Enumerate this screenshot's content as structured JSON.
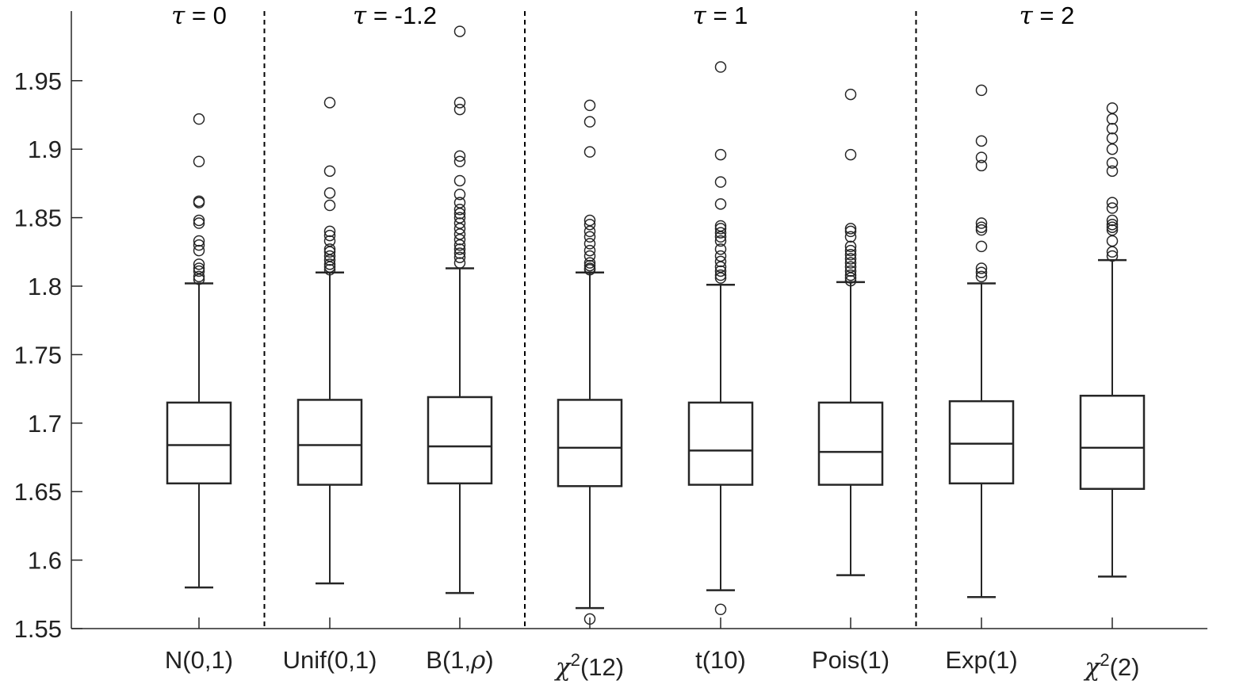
{
  "chart_data": {
    "type": "box",
    "ylim": [
      1.55,
      2.0
    ],
    "yticks": [
      "1.55",
      "1.6",
      "1.65",
      "1.7",
      "1.75",
      "1.8",
      "1.85",
      "1.9",
      "1.95"
    ],
    "grid": false,
    "groups": [
      {
        "tau_symbol": "τ",
        "rest": " = 0",
        "span": [
          0,
          0
        ]
      },
      {
        "tau_symbol": "τ",
        "rest": " = -1.2",
        "span": [
          1,
          2
        ]
      },
      {
        "tau_symbol": "τ",
        "rest": " = 1",
        "span": [
          3,
          5
        ]
      },
      {
        "tau_symbol": "τ",
        "rest": " = 2",
        "span": [
          6,
          7
        ]
      }
    ],
    "categories": [
      {
        "label": "N(0,1)",
        "parts": [
          {
            "t": "N(0,1)"
          }
        ]
      },
      {
        "label": "Unif(0,1)",
        "parts": [
          {
            "t": "Unif(0,1)"
          }
        ]
      },
      {
        "label": "B(1,ρ)",
        "parts": [
          {
            "t": "B(1,"
          },
          {
            "t": "ρ",
            "greek": true
          },
          {
            "t": ")"
          }
        ]
      },
      {
        "label": "χ2(12)",
        "parts": [
          {
            "t": "χ",
            "greek": true
          },
          {
            "t": "2",
            "sup": true
          },
          {
            "t": "(12)"
          }
        ]
      },
      {
        "label": "t(10)",
        "parts": [
          {
            "t": "t(10)"
          }
        ]
      },
      {
        "label": "Pois(1)",
        "parts": [
          {
            "t": "Pois(1)"
          }
        ]
      },
      {
        "label": "Exp(1)",
        "parts": [
          {
            "t": "Exp(1)"
          }
        ]
      },
      {
        "label": "χ2(2)",
        "parts": [
          {
            "t": "χ",
            "greek": true
          },
          {
            "t": "2",
            "sup": true
          },
          {
            "t": "(2)"
          }
        ]
      }
    ],
    "boxes": [
      {
        "q1": 1.656,
        "median": 1.684,
        "q3": 1.715,
        "whisker_low": 1.58,
        "whisker_high": 1.802,
        "outliers": [
          1.922,
          1.891,
          1.862,
          1.861,
          1.848,
          1.846,
          1.833,
          1.83,
          1.826,
          1.816,
          1.813,
          1.811,
          1.807,
          1.805
        ]
      },
      {
        "q1": 1.655,
        "median": 1.684,
        "q3": 1.717,
        "whisker_low": 1.583,
        "whisker_high": 1.81,
        "outliers": [
          1.934,
          1.884,
          1.868,
          1.859,
          1.84,
          1.837,
          1.833,
          1.827,
          1.825,
          1.822,
          1.819,
          1.816,
          1.814,
          1.812
        ]
      },
      {
        "q1": 1.656,
        "median": 1.683,
        "q3": 1.719,
        "whisker_low": 1.576,
        "whisker_high": 1.813,
        "outliers": [
          1.986,
          1.934,
          1.929,
          1.895,
          1.891,
          1.877,
          1.867,
          1.861,
          1.856,
          1.853,
          1.85,
          1.846,
          1.842,
          1.838,
          1.834,
          1.83,
          1.827,
          1.824,
          1.821,
          1.817
        ]
      },
      {
        "q1": 1.654,
        "median": 1.682,
        "q3": 1.717,
        "whisker_low": 1.565,
        "whisker_high": 1.81,
        "outliers": [
          1.932,
          1.92,
          1.898,
          1.848,
          1.845,
          1.84,
          1.836,
          1.831,
          1.826,
          1.822,
          1.817,
          1.815,
          1.813,
          1.812,
          1.557
        ]
      },
      {
        "q1": 1.655,
        "median": 1.68,
        "q3": 1.715,
        "whisker_low": 1.578,
        "whisker_high": 1.801,
        "outliers": [
          1.96,
          1.896,
          1.876,
          1.86,
          1.844,
          1.842,
          1.839,
          1.836,
          1.833,
          1.827,
          1.822,
          1.818,
          1.814,
          1.811,
          1.808,
          1.806,
          1.564
        ]
      },
      {
        "q1": 1.655,
        "median": 1.679,
        "q3": 1.715,
        "whisker_low": 1.589,
        "whisker_high": 1.803,
        "outliers": [
          1.94,
          1.896,
          1.842,
          1.84,
          1.836,
          1.829,
          1.826,
          1.823,
          1.82,
          1.817,
          1.814,
          1.811,
          1.808,
          1.806,
          1.804
        ]
      },
      {
        "q1": 1.656,
        "median": 1.685,
        "q3": 1.716,
        "whisker_low": 1.573,
        "whisker_high": 1.802,
        "outliers": [
          1.943,
          1.906,
          1.894,
          1.888,
          1.846,
          1.843,
          1.841,
          1.829,
          1.813,
          1.81,
          1.807
        ]
      },
      {
        "q1": 1.652,
        "median": 1.682,
        "q3": 1.72,
        "whisker_low": 1.588,
        "whisker_high": 1.819,
        "outliers": [
          1.93,
          1.922,
          1.915,
          1.908,
          1.9,
          1.89,
          1.884,
          1.861,
          1.857,
          1.848,
          1.845,
          1.843,
          1.841,
          1.833,
          1.825,
          1.822
        ]
      }
    ]
  }
}
